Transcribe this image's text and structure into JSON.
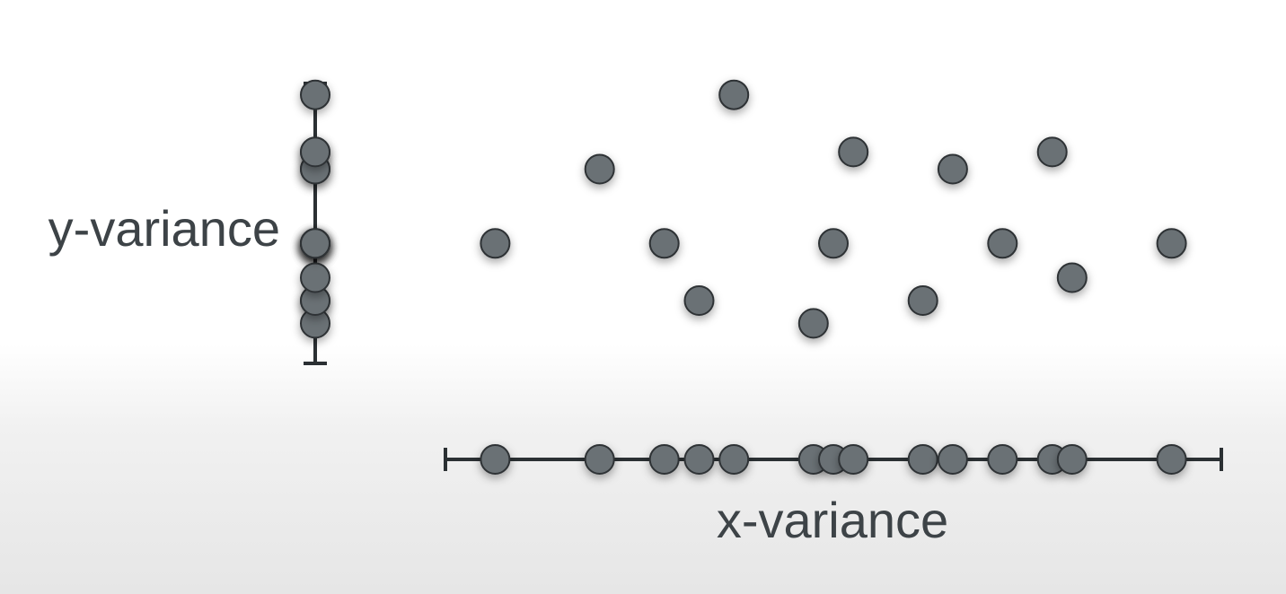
{
  "labels": {
    "y_variance": "y-variance",
    "x_variance": "x-variance"
  },
  "colors": {
    "dot_fill": "#6b7175",
    "dot_stroke": "#2e3336",
    "axis": "#2b3033",
    "text": "#3d4347"
  },
  "points": [
    {
      "x": 2.0,
      "y": 3.2
    },
    {
      "x": 4.1,
      "y": 4.5
    },
    {
      "x": 5.4,
      "y": 3.2
    },
    {
      "x": 6.1,
      "y": 2.2
    },
    {
      "x": 6.8,
      "y": 5.8
    },
    {
      "x": 8.4,
      "y": 1.8
    },
    {
      "x": 8.8,
      "y": 3.2
    },
    {
      "x": 9.2,
      "y": 4.8
    },
    {
      "x": 10.6,
      "y": 2.2
    },
    {
      "x": 11.2,
      "y": 4.5
    },
    {
      "x": 12.2,
      "y": 3.2
    },
    {
      "x": 13.2,
      "y": 4.8
    },
    {
      "x": 13.6,
      "y": 2.6
    },
    {
      "x": 15.6,
      "y": 3.2
    }
  ],
  "axis_ranges": {
    "x": [
      1.0,
      16.6
    ],
    "y": [
      1.1,
      6.0
    ]
  }
}
